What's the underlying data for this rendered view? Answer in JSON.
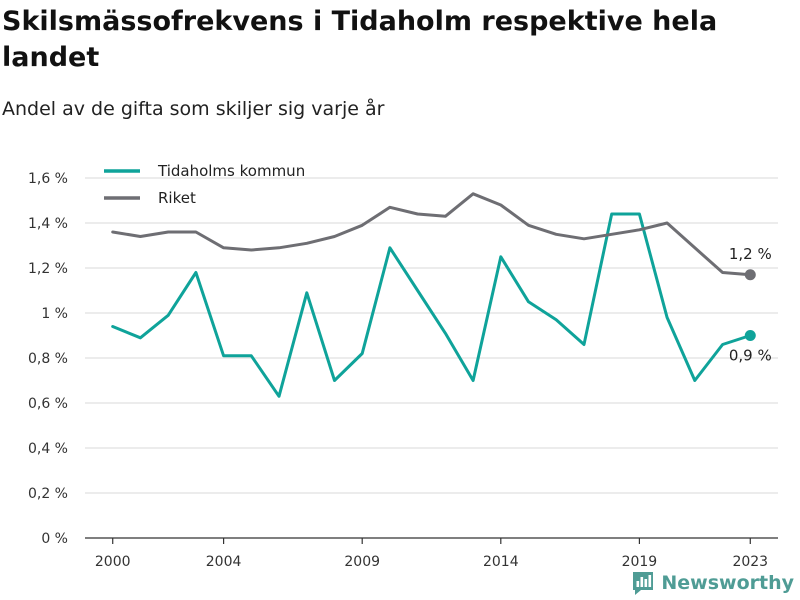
{
  "page": {
    "title": "Skilsmässofrekvens i Tidaholm respektive hela landet",
    "subtitle": "Andel av de gifta som skiljer sig varje år"
  },
  "brand": {
    "name": "Newsworthy",
    "icon": "bar-chart-speech-bubble-icon",
    "color": "#4f9c95"
  },
  "chart_data": {
    "type": "line",
    "title": "Skilsmässofrekvens i Tidaholm respektive hela landet",
    "subtitle": "Andel av de gifta som skiljer sig varje år",
    "x": [
      2000,
      2001,
      2002,
      2003,
      2004,
      2005,
      2006,
      2007,
      2008,
      2009,
      2010,
      2011,
      2012,
      2013,
      2014,
      2015,
      2016,
      2017,
      2018,
      2019,
      2020,
      2021,
      2022,
      2023
    ],
    "x_ticks": [
      2000,
      2004,
      2009,
      2014,
      2019,
      2023
    ],
    "xlim": [
      1999,
      2024
    ],
    "ylim": [
      0,
      1.6
    ],
    "y_ticks": [
      {
        "value": 0,
        "label": "0 %"
      },
      {
        "value": 0.2,
        "label": "0,2 %"
      },
      {
        "value": 0.4,
        "label": "0,4 %"
      },
      {
        "value": 0.6,
        "label": "0,6 %"
      },
      {
        "value": 0.8,
        "label": "0,8 %"
      },
      {
        "value": 1.0,
        "label": "1 %"
      },
      {
        "value": 1.2,
        "label": "1,2 %"
      },
      {
        "value": 1.4,
        "label": "1,4 %"
      },
      {
        "value": 1.6,
        "label": "1,6 %"
      }
    ],
    "grid": true,
    "legend_position": "top-left",
    "series": [
      {
        "name": "Tidaholms kommun",
        "color": "#0fa39a",
        "values": [
          0.94,
          0.89,
          0.99,
          1.18,
          0.81,
          0.81,
          0.63,
          1.09,
          0.7,
          0.82,
          1.29,
          1.1,
          0.91,
          0.7,
          1.25,
          1.05,
          0.97,
          0.86,
          1.44,
          1.44,
          0.98,
          0.7,
          0.86,
          0.9
        ],
        "end_label": "0,9 %"
      },
      {
        "name": "Riket",
        "color": "#6e6e73",
        "values": [
          1.36,
          1.34,
          1.36,
          1.36,
          1.29,
          1.28,
          1.29,
          1.31,
          1.34,
          1.39,
          1.47,
          1.44,
          1.43,
          1.53,
          1.48,
          1.39,
          1.35,
          1.33,
          1.35,
          1.37,
          1.4,
          1.29,
          1.18,
          1.17
        ],
        "end_label": "1,2 %"
      }
    ]
  }
}
